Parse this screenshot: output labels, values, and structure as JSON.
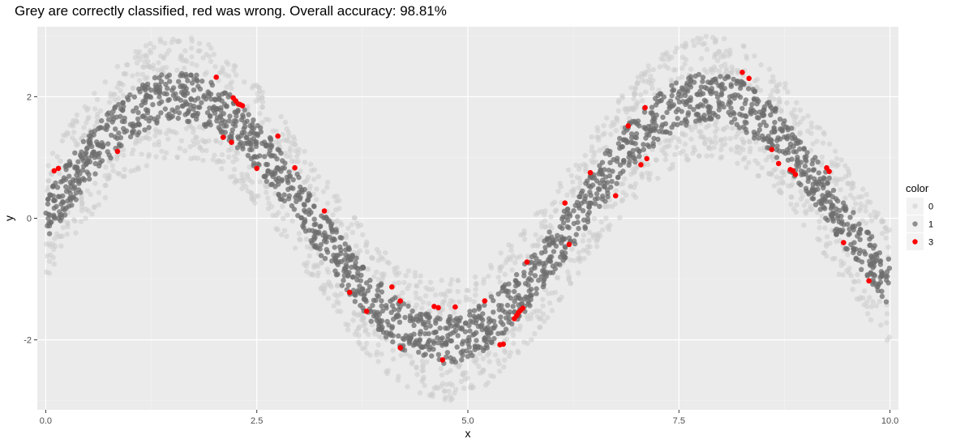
{
  "chart_data": {
    "type": "scatter",
    "title": "Grey are correctly classified, red was wrong. Overall accuracy: 98.81%",
    "xlabel": "x",
    "ylabel": "y",
    "xlim": [
      -0.1,
      10.1
    ],
    "ylim": [
      -3.15,
      3.15
    ],
    "x_ticks": [
      0,
      2.5,
      5,
      7.5,
      10
    ],
    "x_tick_labels": [
      "0.0",
      "2.5",
      "5.0",
      "7.5",
      "10.0"
    ],
    "y_ticks": [
      -2,
      0,
      2
    ],
    "y_tick_labels": [
      "-2",
      "0",
      "2"
    ],
    "grid": true,
    "legend": {
      "title": "color",
      "position": "right",
      "entries": [
        {
          "label": "0",
          "color": "#cccccc",
          "opacity": 0.55
        },
        {
          "label": "1",
          "color": "#6e6e6e",
          "opacity": 0.75
        },
        {
          "label": "3",
          "color": "#ff0000",
          "opacity": 1.0
        }
      ]
    },
    "background_model": {
      "description_func": "y = 2*sin(x)",
      "class_1_band_halfwidth": 0.4,
      "class_0_band_halfwidth": 1.0,
      "x_range": [
        0,
        10
      ]
    },
    "misclassified_points": [
      [
        0.1,
        0.78
      ],
      [
        0.15,
        0.82
      ],
      [
        0.85,
        1.1
      ],
      [
        2.02,
        2.32
      ],
      [
        2.1,
        1.33
      ],
      [
        2.2,
        1.25
      ],
      [
        2.22,
        1.98
      ],
      [
        2.25,
        1.93
      ],
      [
        2.28,
        1.88
      ],
      [
        2.3,
        1.87
      ],
      [
        2.33,
        1.85
      ],
      [
        2.5,
        0.82
      ],
      [
        2.75,
        1.35
      ],
      [
        2.95,
        0.83
      ],
      [
        3.3,
        0.12
      ],
      [
        3.6,
        -1.22
      ],
      [
        3.8,
        -1.53
      ],
      [
        4.1,
        -1.13
      ],
      [
        4.2,
        -1.36
      ],
      [
        4.2,
        -2.13
      ],
      [
        4.6,
        -1.45
      ],
      [
        4.65,
        -1.47
      ],
      [
        4.7,
        -2.33
      ],
      [
        4.85,
        -1.46
      ],
      [
        5.2,
        -1.36
      ],
      [
        5.38,
        -2.08
      ],
      [
        5.42,
        -2.07
      ],
      [
        5.55,
        -1.65
      ],
      [
        5.58,
        -1.6
      ],
      [
        5.6,
        -1.55
      ],
      [
        5.62,
        -1.52
      ],
      [
        5.65,
        -1.48
      ],
      [
        5.7,
        -0.72
      ],
      [
        6.15,
        0.25
      ],
      [
        6.2,
        -0.43
      ],
      [
        6.45,
        0.75
      ],
      [
        6.75,
        0.37
      ],
      [
        6.9,
        1.52
      ],
      [
        7.05,
        0.88
      ],
      [
        7.1,
        1.82
      ],
      [
        7.12,
        0.98
      ],
      [
        8.25,
        2.4
      ],
      [
        8.33,
        2.3
      ],
      [
        8.6,
        1.13
      ],
      [
        8.68,
        0.9
      ],
      [
        8.82,
        0.8
      ],
      [
        8.85,
        0.78
      ],
      [
        8.88,
        0.72
      ],
      [
        9.25,
        0.83
      ],
      [
        9.28,
        0.77
      ],
      [
        9.45,
        -0.4
      ],
      [
        9.75,
        -1.03
      ]
    ]
  }
}
